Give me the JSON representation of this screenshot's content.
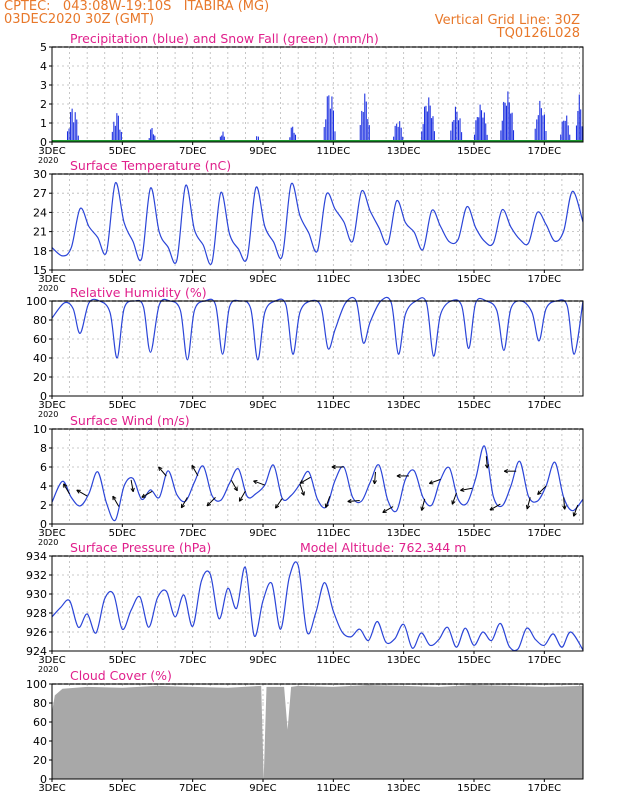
{
  "header": {
    "line1_left": "CPTEC:   043:08W-19:10S   ITABIRA (MG)",
    "line2_left": "03DEC2020 30Z (GMT)",
    "line1_right": "Vertical Grid Line: 30Z",
    "line2_right": "TQ0126L028",
    "model_altitude": "Model Altitude: 762.344 m"
  },
  "colors": {
    "header": "#e8782a",
    "panel_title": "#e0208c",
    "series": "#2b45d8",
    "precip": "#1a2ee0",
    "snow": "#1e9a2e",
    "cloud": "#a8a8a8",
    "grid": "#b8b8b8"
  },
  "x_axis": {
    "ticks": [
      "3DEC",
      "5DEC",
      "7DEC",
      "9DEC",
      "11DEC",
      "13DEC",
      "15DEC",
      "17DEC"
    ],
    "tick_days": [
      0,
      2,
      4,
      6,
      8,
      10,
      12,
      14
    ],
    "day_range": [
      0,
      15.1
    ],
    "corner_label": "2020"
  },
  "chart_data": [
    {
      "type": "bar",
      "title": "Precipitation (blue) and Snow Fall (green) (mm/h)",
      "ylim": [
        0,
        5
      ],
      "yticks": [
        0,
        1,
        2,
        3,
        4,
        5
      ],
      "series": [
        {
          "name": "Precipitation",
          "events": [
            {
              "day": 0.6,
              "peak": 1.9,
              "width": 0.35
            },
            {
              "day": 1.85,
              "peak": 1.6,
              "width": 0.3
            },
            {
              "day": 2.85,
              "peak": 0.8,
              "width": 0.2
            },
            {
              "day": 4.85,
              "peak": 0.6,
              "width": 0.15
            },
            {
              "day": 5.85,
              "peak": 0.4,
              "width": 0.1
            },
            {
              "day": 6.85,
              "peak": 0.9,
              "width": 0.2
            },
            {
              "day": 7.9,
              "peak": 2.8,
              "width": 0.35
            },
            {
              "day": 8.9,
              "peak": 2.6,
              "width": 0.3
            },
            {
              "day": 9.85,
              "peak": 1.2,
              "width": 0.3
            },
            {
              "day": 10.7,
              "peak": 2.4,
              "width": 0.4
            },
            {
              "day": 11.5,
              "peak": 1.9,
              "width": 0.35
            },
            {
              "day": 12.2,
              "peak": 2.0,
              "width": 0.4
            },
            {
              "day": 12.95,
              "peak": 2.7,
              "width": 0.4
            },
            {
              "day": 13.9,
              "peak": 2.2,
              "width": 0.35
            },
            {
              "day": 14.6,
              "peak": 1.5,
              "width": 0.3
            },
            {
              "day": 15.0,
              "peak": 2.5,
              "width": 0.2
            }
          ]
        },
        {
          "name": "Snow Fall",
          "values": [
            0
          ]
        }
      ]
    },
    {
      "type": "line",
      "title": "Surface Temperature (nC)",
      "ylim": [
        15,
        30
      ],
      "yticks": [
        15,
        18,
        21,
        24,
        27,
        30
      ],
      "series": [
        {
          "name": "Temperature",
          "day": [
            0,
            0.3,
            0.55,
            0.8,
            1.05,
            1.3,
            1.55,
            1.8,
            2.05,
            2.3,
            2.55,
            2.8,
            3.05,
            3.3,
            3.55,
            3.8,
            4.05,
            4.3,
            4.55,
            4.8,
            5.05,
            5.3,
            5.55,
            5.8,
            6.05,
            6.3,
            6.55,
            6.8,
            7.05,
            7.3,
            7.55,
            7.8,
            8.05,
            8.3,
            8.55,
            8.8,
            9.05,
            9.3,
            9.55,
            9.8,
            10.05,
            10.3,
            10.55,
            10.8,
            11.05,
            11.3,
            11.55,
            11.8,
            12.05,
            12.3,
            12.55,
            12.8,
            13.05,
            13.3,
            13.55,
            13.8,
            14.05,
            14.3,
            14.55,
            14.8,
            15.1
          ],
          "values": [
            18.5,
            17.2,
            18.5,
            24.6,
            21.8,
            20.1,
            17.8,
            28.6,
            22.4,
            19.5,
            16.8,
            27.8,
            20.9,
            18.6,
            16.5,
            28.2,
            21.3,
            18.9,
            16.2,
            27.1,
            20.6,
            18.3,
            16.9,
            27.9,
            21.8,
            19.4,
            17.2,
            28.4,
            23.5,
            20.8,
            18.0,
            26.8,
            24.5,
            22.5,
            19.5,
            27.3,
            24.2,
            21.6,
            19.1,
            25.8,
            22.4,
            20.9,
            18.2,
            24.3,
            21.8,
            19.4,
            19.8,
            24.9,
            21.6,
            19.5,
            19.2,
            24.4,
            21.7,
            19.8,
            19.2,
            24.0,
            22.1,
            19.5,
            21.1,
            27.3,
            22.5
          ]
        }
      ]
    },
    {
      "type": "line",
      "title": "Relative Humidity (%)",
      "ylim": [
        0,
        100
      ],
      "yticks": [
        0,
        20,
        40,
        60,
        80,
        100
      ],
      "series": [
        {
          "name": "Relative Humidity",
          "day": [
            0,
            0.35,
            0.6,
            0.8,
            1.05,
            1.35,
            1.65,
            1.85,
            2.05,
            2.35,
            2.6,
            2.8,
            3.05,
            3.35,
            3.65,
            3.85,
            4.05,
            4.35,
            4.65,
            4.85,
            5.05,
            5.35,
            5.65,
            5.85,
            6.05,
            6.35,
            6.65,
            6.85,
            7.05,
            7.35,
            7.65,
            7.85,
            8.05,
            8.35,
            8.65,
            8.85,
            9.05,
            9.35,
            9.65,
            9.85,
            10.05,
            10.35,
            10.65,
            10.85,
            11.05,
            11.35,
            11.65,
            11.85,
            12.05,
            12.35,
            12.65,
            12.85,
            13.05,
            13.35,
            13.65,
            13.85,
            14.05,
            14.35,
            14.65,
            14.85,
            15.1
          ],
          "values": [
            82,
            98,
            92,
            66,
            98,
            100,
            88,
            40,
            92,
            100,
            94,
            46,
            96,
            100,
            90,
            38,
            90,
            100,
            96,
            44,
            94,
            100,
            92,
            38,
            88,
            100,
            96,
            44,
            88,
            100,
            94,
            50,
            70,
            98,
            100,
            56,
            78,
            100,
            98,
            44,
            86,
            100,
            98,
            42,
            86,
            100,
            95,
            50,
            98,
            100,
            90,
            48,
            92,
            100,
            88,
            58,
            92,
            100,
            95,
            44,
            100
          ]
        }
      ]
    },
    {
      "type": "line",
      "title": "Surface Wind (m/s)",
      "ylim": [
        0,
        10
      ],
      "yticks": [
        0,
        2,
        4,
        6,
        8,
        10
      ],
      "series": [
        {
          "name": "Wind Speed",
          "day": [
            0,
            0.3,
            0.55,
            0.8,
            1.05,
            1.3,
            1.55,
            1.8,
            2.05,
            2.3,
            2.55,
            2.8,
            3.05,
            3.3,
            3.55,
            3.8,
            4.05,
            4.3,
            4.55,
            4.8,
            5.05,
            5.3,
            5.55,
            5.8,
            6.05,
            6.3,
            6.55,
            6.8,
            7.05,
            7.3,
            7.55,
            7.8,
            8.05,
            8.3,
            8.55,
            8.8,
            9.05,
            9.3,
            9.55,
            9.8,
            10.05,
            10.3,
            10.55,
            10.8,
            11.05,
            11.3,
            11.55,
            11.8,
            12.05,
            12.3,
            12.55,
            12.8,
            13.05,
            13.3,
            13.55,
            13.8,
            14.05,
            14.3,
            14.55,
            14.8,
            15.1
          ],
          "values": [
            2.3,
            4.5,
            2.8,
            1.9,
            3.2,
            5.5,
            2.2,
            0.4,
            4.0,
            4.8,
            2.6,
            3.6,
            2.8,
            5.6,
            3.1,
            2.4,
            4.4,
            6.1,
            3.0,
            2.5,
            4.3,
            5.8,
            2.9,
            3.2,
            4.1,
            6.2,
            2.7,
            3.0,
            4.2,
            5.5,
            2.6,
            1.8,
            4.6,
            6.0,
            2.8,
            2.4,
            4.4,
            6.2,
            2.5,
            1.4,
            4.7,
            5.6,
            2.8,
            2.0,
            4.7,
            5.9,
            2.6,
            2.2,
            4.8,
            8.2,
            2.9,
            1.9,
            4.0,
            6.6,
            2.9,
            2.4,
            4.0,
            6.5,
            2.8,
            1.4,
            2.6
          ]
        }
      ],
      "wind_arrows": [
        {
          "day": 0.5,
          "dir_deg": 330
        },
        {
          "day": 1.0,
          "dir_deg": 300
        },
        {
          "day": 1.9,
          "dir_deg": 330
        },
        {
          "day": 2.25,
          "dir_deg": 170
        },
        {
          "day": 2.85,
          "dir_deg": 240
        },
        {
          "day": 3.25,
          "dir_deg": 320
        },
        {
          "day": 3.85,
          "dir_deg": 210
        },
        {
          "day": 4.15,
          "dir_deg": 330
        },
        {
          "day": 4.65,
          "dir_deg": 225
        },
        {
          "day": 5.1,
          "dir_deg": 150
        },
        {
          "day": 5.5,
          "dir_deg": 210
        },
        {
          "day": 6.05,
          "dir_deg": 290
        },
        {
          "day": 6.55,
          "dir_deg": 215
        },
        {
          "day": 7.05,
          "dir_deg": 160
        },
        {
          "day": 7.35,
          "dir_deg": 240
        },
        {
          "day": 7.9,
          "dir_deg": 200
        },
        {
          "day": 8.3,
          "dir_deg": 270
        },
        {
          "day": 8.75,
          "dir_deg": 265
        },
        {
          "day": 9.2,
          "dir_deg": 185
        },
        {
          "day": 9.7,
          "dir_deg": 240
        },
        {
          "day": 10.15,
          "dir_deg": 270
        },
        {
          "day": 10.6,
          "dir_deg": 195
        },
        {
          "day": 11.05,
          "dir_deg": 250
        },
        {
          "day": 11.5,
          "dir_deg": 200
        },
        {
          "day": 11.95,
          "dir_deg": 260
        },
        {
          "day": 12.35,
          "dir_deg": 175
        },
        {
          "day": 12.75,
          "dir_deg": 240
        },
        {
          "day": 13.2,
          "dir_deg": 270
        },
        {
          "day": 13.6,
          "dir_deg": 195
        },
        {
          "day": 14.05,
          "dir_deg": 225
        },
        {
          "day": 14.55,
          "dir_deg": 175
        },
        {
          "day": 14.95,
          "dir_deg": 200
        }
      ]
    },
    {
      "type": "line",
      "title": "Surface Pressure (hPa)",
      "ylim": [
        924,
        934
      ],
      "yticks": [
        924,
        926,
        928,
        930,
        932,
        934
      ],
      "series": [
        {
          "name": "Surface Pressure",
          "day": [
            0,
            0.25,
            0.5,
            0.75,
            1.0,
            1.25,
            1.5,
            1.75,
            2.0,
            2.25,
            2.5,
            2.75,
            3.0,
            3.25,
            3.5,
            3.75,
            4.0,
            4.25,
            4.5,
            4.75,
            5.0,
            5.25,
            5.5,
            5.75,
            6.0,
            6.25,
            6.5,
            6.75,
            7.0,
            7.25,
            7.5,
            7.75,
            8.0,
            8.25,
            8.5,
            8.75,
            9.0,
            9.25,
            9.5,
            9.75,
            10.0,
            10.25,
            10.5,
            10.75,
            11.0,
            11.25,
            11.5,
            11.75,
            12.0,
            12.25,
            12.5,
            12.75,
            13.0,
            13.25,
            13.5,
            13.75,
            14.0,
            14.25,
            14.5,
            14.75,
            15.1
          ],
          "values": [
            927.6,
            928.6,
            929.3,
            926.5,
            927.9,
            925.9,
            929.5,
            930.0,
            926.3,
            928.3,
            929.7,
            926.5,
            929.6,
            930.3,
            927.6,
            929.9,
            926.6,
            931.4,
            932.1,
            927.4,
            930.6,
            928.5,
            932.8,
            925.6,
            929.3,
            931.1,
            926.3,
            931.8,
            933.0,
            926.0,
            928.0,
            931.2,
            928.2,
            926.0,
            925.5,
            926.3,
            925.1,
            927.1,
            924.9,
            925.3,
            926.8,
            924.3,
            925.9,
            924.6,
            925.2,
            926.5,
            924.4,
            926.4,
            924.6,
            926.0,
            925.1,
            926.9,
            924.5,
            924.2,
            926.4,
            925.2,
            924.6,
            925.8,
            924.4,
            926.0,
            924.1
          ]
        }
      ]
    },
    {
      "type": "area",
      "title": "Cloud Cover (%)",
      "ylim": [
        0,
        100
      ],
      "yticks": [
        0,
        20,
        40,
        60,
        80,
        100
      ],
      "series": [
        {
          "name": "Cloud Cover",
          "day": [
            0,
            0.08,
            0.3,
            1.0,
            2.0,
            3.0,
            4.0,
            5.0,
            5.95,
            6.02,
            6.1,
            6.6,
            6.7,
            6.8,
            7.0,
            8.0,
            9.0,
            10.0,
            11.0,
            12.0,
            13.0,
            14.0,
            15.1
          ],
          "values": [
            70,
            88,
            95,
            97,
            96,
            98,
            97,
            96,
            98,
            0,
            97,
            97,
            52,
            97,
            98,
            97,
            99,
            98,
            97,
            99,
            98,
            97,
            98
          ]
        }
      ]
    }
  ]
}
